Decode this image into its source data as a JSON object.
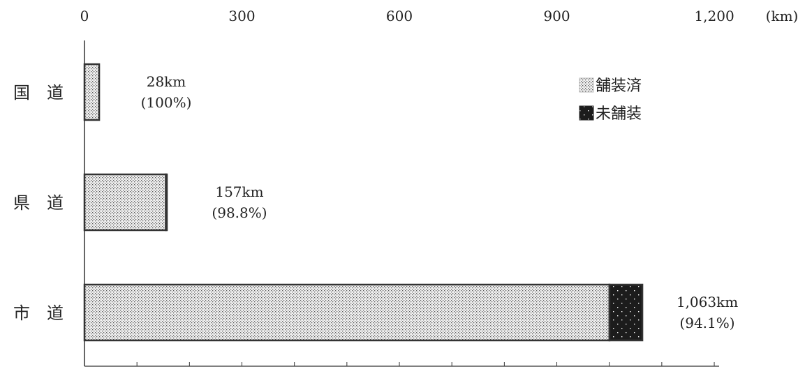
{
  "chart_data": {
    "type": "bar",
    "orientation": "horizontal",
    "stacked": true,
    "x_unit": "(km)",
    "x_ticks": [
      "0",
      "300",
      "600",
      "900",
      "1,200"
    ],
    "xlim": [
      0,
      1200
    ],
    "categories": [
      {
        "name": "国　道",
        "label_value": "28km",
        "label_percent": "(100%)"
      },
      {
        "name": "県　道",
        "label_value": "157km",
        "label_percent": "(98.8%)"
      },
      {
        "name": "市　道",
        "label_value": "1,063km",
        "label_percent": "(94.1%)"
      }
    ],
    "series": [
      {
        "name": "舗装済",
        "values": [
          28,
          155.1,
          1000.3
        ],
        "color": "#e6e6e6",
        "pattern": "dots-dense"
      },
      {
        "name": "未舗装",
        "values": [
          0,
          1.9,
          62.7
        ],
        "color": "#222222",
        "pattern": "dots-sparse"
      }
    ],
    "legend_position": "top-right",
    "grid": false
  }
}
